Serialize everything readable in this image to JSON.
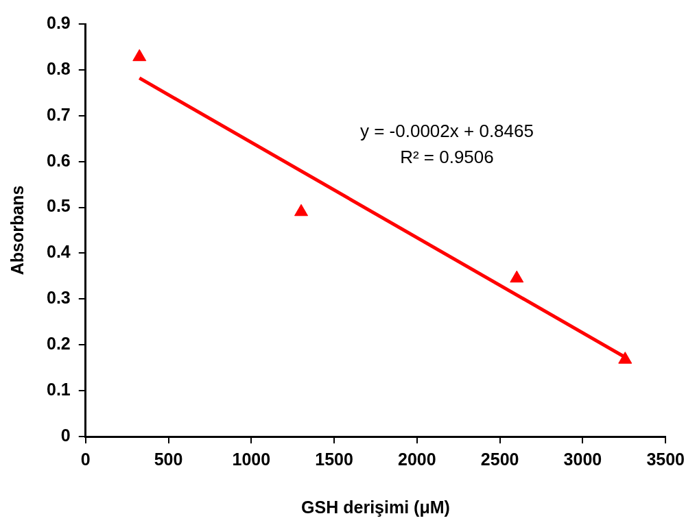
{
  "chart_data": {
    "type": "scatter",
    "xlabel": "GSH derişimi (μM)",
    "ylabel": "Absorbans",
    "annotations": [
      "y = -0.0002x + 0.8465",
      "R² = 0.9506"
    ],
    "series": [
      {
        "type": "scatter",
        "color": "#ff0000",
        "marker": "triangle",
        "x": [
          325,
          1301,
          2602,
          3256
        ],
        "values": [
          0.828,
          0.49,
          0.345,
          0.168
        ]
      },
      {
        "type": "line",
        "color": "#ff0000",
        "line_style": "solid",
        "x": [
          325,
          3256
        ],
        "values": [
          0.782,
          0.173
        ]
      }
    ],
    "xlim": [
      0,
      3500
    ],
    "xticks": [
      0,
      500,
      1000,
      1500,
      2000,
      2500,
      3000,
      3500
    ],
    "ylim": [
      0,
      0.9
    ],
    "yticks": [
      0,
      0.1,
      0.2,
      0.3,
      0.4,
      0.5,
      0.6,
      0.7,
      0.8,
      0.9
    ],
    "grid": false,
    "legend": false
  }
}
